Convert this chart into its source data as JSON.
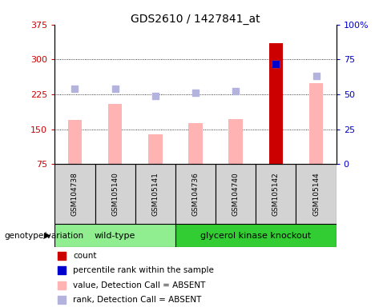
{
  "title": "GDS2610 / 1427841_at",
  "samples": [
    "GSM104738",
    "GSM105140",
    "GSM105141",
    "GSM104736",
    "GSM104740",
    "GSM105142",
    "GSM105144"
  ],
  "value_bars": [
    170,
    205,
    140,
    163,
    172,
    335,
    250
  ],
  "rank_dots": [
    238,
    237,
    222,
    228,
    232,
    291,
    265
  ],
  "count_bar_idx": 5,
  "count_bar_value": 335,
  "percentile_rank_value": 291,
  "value_color": "#ffb3b3",
  "rank_color": "#b3b3dd",
  "count_color": "#cc0000",
  "percentile_color": "#0000cc",
  "ymin": 75,
  "ymax": 375,
  "yticks": [
    75,
    150,
    225,
    300,
    375
  ],
  "y2ticks": [
    0,
    25,
    50,
    75,
    100
  ],
  "y2tick_labels": [
    "0",
    "25",
    "50",
    "75",
    "100%"
  ],
  "y2min": 0,
  "y2max": 100,
  "ylabel_color": "#cc0000",
  "y2label_color": "#0000cc",
  "bg_color": "#ffffff",
  "grid_color": "#000000",
  "legend_items": [
    {
      "label": "count",
      "color": "#cc0000"
    },
    {
      "label": "percentile rank within the sample",
      "color": "#0000cc"
    },
    {
      "label": "value, Detection Call = ABSENT",
      "color": "#ffb3b3"
    },
    {
      "label": "rank, Detection Call = ABSENT",
      "color": "#b3b3dd"
    }
  ],
  "wt_color": "#90ee90",
  "gk_color": "#32cd32",
  "sample_bg": "#d3d3d3",
  "bar_width": 0.35,
  "dot_size": 40
}
